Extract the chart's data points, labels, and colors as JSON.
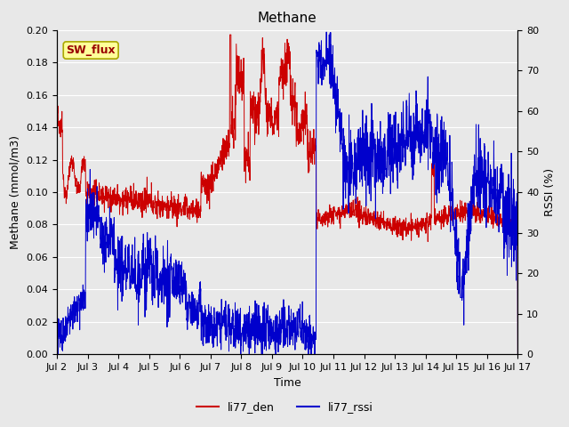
{
  "title": "Methane",
  "ylabel_left": "Methane (mmol/m3)",
  "ylabel_right": "RSSI (%)",
  "xlabel": "Time",
  "ylim_left": [
    0.0,
    0.2
  ],
  "ylim_right": [
    0,
    80
  ],
  "yticks_left": [
    0.0,
    0.02,
    0.04,
    0.06,
    0.08,
    0.1,
    0.12,
    0.14,
    0.16,
    0.18,
    0.2
  ],
  "yticks_right": [
    0,
    10,
    20,
    30,
    40,
    50,
    60,
    70,
    80
  ],
  "xtick_labels": [
    "Jul 2",
    "Jul 3",
    "Jul 4",
    "Jul 5",
    "Jul 6",
    "Jul 7",
    "Jul 8",
    "Jul 9",
    "Jul 10",
    "Jul 11",
    "Jul 12",
    "Jul 13",
    "Jul 14",
    "Jul 15",
    "Jul 16",
    "Jul 17"
  ],
  "legend_labels": [
    "li77_den",
    "li77_rssi"
  ],
  "legend_colors": [
    "#cc0000",
    "#0000cc"
  ],
  "line_colors": {
    "den": "#cc0000",
    "rssi": "#0000cc"
  },
  "annotation_text": "SW_flux",
  "annotation_bg": "#ffff99",
  "annotation_border": "#aaa800",
  "plot_bg": "#e8e8e8",
  "fig_bg": "#e8e8e8",
  "grid_color": "#ffffff",
  "title_fontsize": 11,
  "label_fontsize": 9,
  "tick_fontsize": 8,
  "legend_fontsize": 9
}
